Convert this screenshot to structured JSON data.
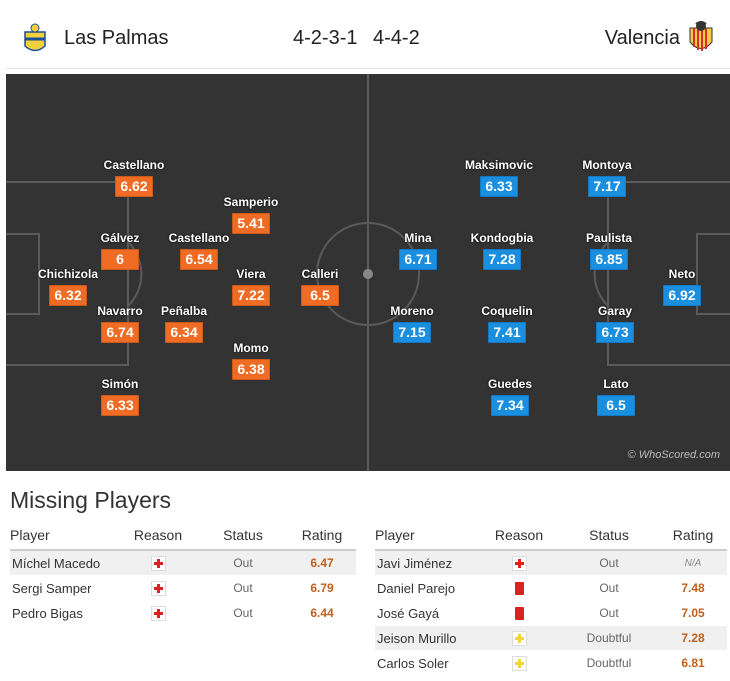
{
  "match": {
    "home": {
      "name": "Las Palmas",
      "formation": "4-2-3-1"
    },
    "away": {
      "name": "Valencia",
      "formation": "4-4-2"
    }
  },
  "colors": {
    "home_rating": "#f06c24",
    "away_rating": "#1a8fe0",
    "pitch": "#333333"
  },
  "pitch": {
    "watermark": "© WhoScored.com",
    "home_players": [
      {
        "name": "Chichizola",
        "rating": "6.32"
      },
      {
        "name": "Castellano",
        "rating": "6.62"
      },
      {
        "name": "Gálvez",
        "rating": "6"
      },
      {
        "name": "Navarro",
        "rating": "6.74"
      },
      {
        "name": "Simón",
        "rating": "6.33"
      },
      {
        "name": "Castellano",
        "rating": "6.54"
      },
      {
        "name": "Peñalba",
        "rating": "6.34"
      },
      {
        "name": "Samperio",
        "rating": "5.41"
      },
      {
        "name": "Viera",
        "rating": "7.22"
      },
      {
        "name": "Momo",
        "rating": "6.38"
      },
      {
        "name": "Calleri",
        "rating": "6.5"
      }
    ],
    "away_players": [
      {
        "name": "Maksimovic",
        "rating": "6.33"
      },
      {
        "name": "Montoya",
        "rating": "7.17"
      },
      {
        "name": "Mina",
        "rating": "6.71"
      },
      {
        "name": "Kondogbia",
        "rating": "7.28"
      },
      {
        "name": "Paulista",
        "rating": "6.85"
      },
      {
        "name": "Neto",
        "rating": "6.92"
      },
      {
        "name": "Moreno",
        "rating": "7.15"
      },
      {
        "name": "Coquelin",
        "rating": "7.41"
      },
      {
        "name": "Garay",
        "rating": "6.73"
      },
      {
        "name": "Guedes",
        "rating": "7.34"
      },
      {
        "name": "Lato",
        "rating": "6.5"
      }
    ]
  },
  "missing": {
    "title": "Missing Players",
    "columns": {
      "player": "Player",
      "reason": "Reason",
      "status": "Status",
      "rating": "Rating"
    },
    "home": [
      {
        "player": "Míchel Macedo",
        "reason_icon": "injury-icon",
        "status": "Out",
        "rating": "6.47"
      },
      {
        "player": "Sergi Samper",
        "reason_icon": "injury-icon",
        "status": "Out",
        "rating": "6.79"
      },
      {
        "player": "Pedro Bigas",
        "reason_icon": "injury-icon",
        "status": "Out",
        "rating": "6.44"
      }
    ],
    "away": [
      {
        "player": "Javi Jiménez",
        "reason_icon": "injury-icon",
        "status": "Out",
        "rating": "N/A"
      },
      {
        "player": "Daniel Parejo",
        "reason_icon": "red-card-icon",
        "status": "Out",
        "rating": "7.48"
      },
      {
        "player": "José Gayá",
        "reason_icon": "red-card-icon",
        "status": "Out",
        "rating": "7.05"
      },
      {
        "player": "Jeison Murillo",
        "reason_icon": "doubtful-icon",
        "status": "Doubtful",
        "rating": "7.28"
      },
      {
        "player": "Carlos Soler",
        "reason_icon": "doubtful-icon",
        "status": "Doubtful",
        "rating": "6.81"
      }
    ]
  }
}
